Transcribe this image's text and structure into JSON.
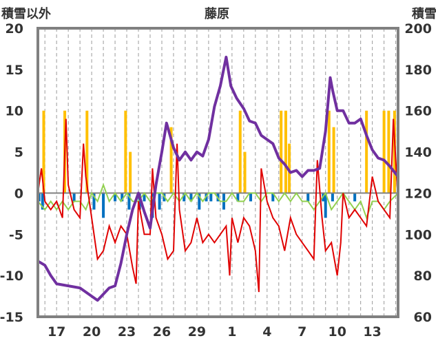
{
  "chart_data": {
    "type": "line",
    "title": "藤原",
    "left_axis_title": "積雪以外",
    "right_axis_title": "積雪",
    "left_ylim": [
      -15,
      20
    ],
    "left_yticks": [
      -15,
      -10,
      -5,
      0,
      5,
      10,
      15,
      20
    ],
    "right_ylim": [
      60,
      200
    ],
    "right_yticks": [
      60,
      80,
      100,
      120,
      140,
      160,
      180,
      200
    ],
    "x_ticks": [
      "17",
      "20",
      "23",
      "26",
      "29",
      "1",
      "4",
      "7",
      "10",
      "13"
    ],
    "x_tick_day_index": [
      2,
      5,
      8,
      11,
      14,
      17,
      20,
      23,
      26,
      29
    ],
    "x_range_days": [
      0.4,
      31.2
    ],
    "grid_x_dashed": true,
    "colors": {
      "snow_depth": "#7030a0",
      "temperature": "#e00000",
      "sunshine": "#ffc000",
      "precipitation": "#0070c0",
      "temp_change": "#92d050",
      "frame": "#808080"
    },
    "snow_depth": {
      "axis": "right",
      "points": [
        [
          0.4,
          87
        ],
        [
          1.0,
          85
        ],
        [
          1.5,
          80
        ],
        [
          2.0,
          76
        ],
        [
          3.0,
          75
        ],
        [
          4.0,
          74
        ],
        [
          4.5,
          72
        ],
        [
          5.0,
          70
        ],
        [
          5.5,
          68
        ],
        [
          6.0,
          71
        ],
        [
          6.5,
          74
        ],
        [
          7.0,
          75
        ],
        [
          7.5,
          86
        ],
        [
          8.0,
          100
        ],
        [
          8.5,
          112
        ],
        [
          9.0,
          120
        ],
        [
          9.5,
          111
        ],
        [
          10.0,
          103
        ],
        [
          10.5,
          124
        ],
        [
          11.0,
          140
        ],
        [
          11.4,
          154
        ],
        [
          12.0,
          142
        ],
        [
          12.5,
          136
        ],
        [
          13.0,
          140
        ],
        [
          13.5,
          136
        ],
        [
          14.0,
          140
        ],
        [
          14.5,
          138
        ],
        [
          15.0,
          146
        ],
        [
          15.5,
          162
        ],
        [
          16.0,
          172
        ],
        [
          16.5,
          186
        ],
        [
          16.9,
          172
        ],
        [
          17.4,
          166
        ],
        [
          18.0,
          161
        ],
        [
          18.5,
          155
        ],
        [
          19.0,
          154
        ],
        [
          19.5,
          148
        ],
        [
          20.0,
          146
        ],
        [
          20.5,
          144
        ],
        [
          21.0,
          137
        ],
        [
          21.5,
          134
        ],
        [
          22.0,
          130
        ],
        [
          22.5,
          131
        ],
        [
          23.0,
          128
        ],
        [
          23.5,
          131
        ],
        [
          24.0,
          131
        ],
        [
          24.5,
          132
        ],
        [
          25.0,
          150
        ],
        [
          25.4,
          176
        ],
        [
          25.6,
          170
        ],
        [
          26.0,
          160
        ],
        [
          26.5,
          160
        ],
        [
          27.0,
          154
        ],
        [
          27.5,
          154
        ],
        [
          28.0,
          156
        ],
        [
          28.5,
          148
        ],
        [
          29.0,
          141
        ],
        [
          29.5,
          137
        ],
        [
          30.0,
          136
        ],
        [
          30.5,
          133
        ],
        [
          31.2,
          128
        ]
      ]
    },
    "temperature": {
      "axis": "left",
      "points": [
        [
          0.4,
          0
        ],
        [
          0.7,
          3
        ],
        [
          1.0,
          -1
        ],
        [
          1.5,
          -2
        ],
        [
          2.0,
          -1
        ],
        [
          2.5,
          -3
        ],
        [
          2.8,
          9
        ],
        [
          3.0,
          1
        ],
        [
          3.5,
          -2
        ],
        [
          4.0,
          -3
        ],
        [
          4.3,
          6
        ],
        [
          4.5,
          2
        ],
        [
          5.0,
          -3
        ],
        [
          5.5,
          -8
        ],
        [
          6.0,
          -7
        ],
        [
          6.5,
          -4
        ],
        [
          7.0,
          -6
        ],
        [
          7.5,
          -4
        ],
        [
          8.0,
          -5
        ],
        [
          8.5,
          -9
        ],
        [
          8.8,
          -11
        ],
        [
          9.0,
          -1
        ],
        [
          9.5,
          -5
        ],
        [
          10.0,
          -5
        ],
        [
          10.2,
          3
        ],
        [
          10.5,
          -3
        ],
        [
          11.0,
          -5
        ],
        [
          11.5,
          -8
        ],
        [
          12.0,
          -7
        ],
        [
          12.3,
          6
        ],
        [
          12.5,
          -2
        ],
        [
          13.0,
          -7
        ],
        [
          13.5,
          -6
        ],
        [
          14.0,
          -3
        ],
        [
          14.5,
          -6
        ],
        [
          15.0,
          -5
        ],
        [
          15.5,
          -6
        ],
        [
          16.0,
          -5
        ],
        [
          16.5,
          -4
        ],
        [
          16.8,
          -10
        ],
        [
          17.0,
          -3
        ],
        [
          17.5,
          -6
        ],
        [
          18.0,
          -3
        ],
        [
          18.5,
          -4
        ],
        [
          19.0,
          -7
        ],
        [
          19.3,
          -12
        ],
        [
          19.5,
          3
        ],
        [
          20.0,
          -1
        ],
        [
          20.5,
          -3
        ],
        [
          21.0,
          -4
        ],
        [
          21.5,
          -7
        ],
        [
          22.0,
          -3
        ],
        [
          22.5,
          -5
        ],
        [
          23.0,
          -6
        ],
        [
          23.5,
          -7
        ],
        [
          24.0,
          -8
        ],
        [
          24.3,
          4
        ],
        [
          24.7,
          -3
        ],
        [
          25.0,
          -7
        ],
        [
          25.5,
          -6
        ],
        [
          26.0,
          -10
        ],
        [
          26.3,
          -6
        ],
        [
          26.5,
          0
        ],
        [
          27.0,
          -3
        ],
        [
          27.5,
          -2
        ],
        [
          28.0,
          -3
        ],
        [
          28.5,
          -4
        ],
        [
          29.0,
          2
        ],
        [
          29.5,
          -1
        ],
        [
          30.0,
          -2
        ],
        [
          30.5,
          -3
        ],
        [
          30.8,
          9
        ],
        [
          31.2,
          -1
        ]
      ]
    },
    "temp_change": {
      "axis": "left",
      "points": [
        [
          0.4,
          -1
        ],
        [
          1.0,
          -2
        ],
        [
          1.5,
          -1
        ],
        [
          2.0,
          -2
        ],
        [
          2.5,
          -1
        ],
        [
          3.0,
          -2
        ],
        [
          3.5,
          -1
        ],
        [
          4.0,
          -1
        ],
        [
          4.5,
          -2
        ],
        [
          5.0,
          0
        ],
        [
          5.5,
          -1
        ],
        [
          6.0,
          1
        ],
        [
          6.5,
          -1
        ],
        [
          7.0,
          0
        ],
        [
          7.5,
          -1
        ],
        [
          8.0,
          0
        ],
        [
          8.5,
          -1
        ],
        [
          9.0,
          -1
        ],
        [
          9.5,
          0
        ],
        [
          10.0,
          -1
        ],
        [
          10.5,
          0
        ],
        [
          11.0,
          0
        ],
        [
          11.5,
          -1
        ],
        [
          12.0,
          0
        ],
        [
          12.5,
          -1
        ],
        [
          13.0,
          0
        ],
        [
          13.5,
          -1
        ],
        [
          14.0,
          0
        ],
        [
          14.5,
          -1
        ],
        [
          15.0,
          0
        ],
        [
          15.5,
          0
        ],
        [
          16.0,
          -1
        ],
        [
          16.5,
          -1
        ],
        [
          17.0,
          0
        ],
        [
          17.5,
          -1
        ],
        [
          18.0,
          -1
        ],
        [
          18.5,
          0
        ],
        [
          19.0,
          0
        ],
        [
          19.5,
          -1
        ],
        [
          20.0,
          0
        ],
        [
          20.5,
          0
        ],
        [
          21.0,
          -1
        ],
        [
          21.5,
          0
        ],
        [
          22.0,
          -1
        ],
        [
          22.5,
          0
        ],
        [
          23.0,
          -1
        ],
        [
          23.5,
          -1
        ],
        [
          24.0,
          -2
        ],
        [
          24.5,
          -1
        ],
        [
          25.0,
          0
        ],
        [
          25.5,
          -2
        ],
        [
          26.0,
          -1
        ],
        [
          26.5,
          0
        ],
        [
          27.0,
          -1
        ],
        [
          27.5,
          -2
        ],
        [
          28.0,
          -1
        ],
        [
          28.5,
          -3
        ],
        [
          29.0,
          -1
        ],
        [
          29.5,
          -1
        ],
        [
          30.0,
          -2
        ],
        [
          30.5,
          -1
        ],
        [
          31.2,
          0
        ]
      ]
    },
    "sunshine": {
      "axis": "left",
      "bars": [
        [
          0.9,
          10
        ],
        [
          2.7,
          10
        ],
        [
          4.6,
          10
        ],
        [
          7.9,
          10
        ],
        [
          8.3,
          5
        ],
        [
          11.8,
          8
        ],
        [
          17.7,
          10
        ],
        [
          18.1,
          5
        ],
        [
          21.2,
          10
        ],
        [
          21.6,
          10
        ],
        [
          21.9,
          6
        ],
        [
          25.3,
          10
        ],
        [
          25.7,
          8
        ],
        [
          28.5,
          10
        ],
        [
          30.0,
          10
        ],
        [
          30.4,
          10
        ],
        [
          30.9,
          10
        ]
      ]
    },
    "precipitation": {
      "axis": "left",
      "bars": [
        [
          0.5,
          -1
        ],
        [
          0.8,
          -2
        ],
        [
          3.5,
          -1
        ],
        [
          5.2,
          -2
        ],
        [
          6.0,
          -3
        ],
        [
          7.0,
          -1
        ],
        [
          7.6,
          -1
        ],
        [
          8.2,
          -2
        ],
        [
          9.1,
          -2
        ],
        [
          9.5,
          -1
        ],
        [
          10.2,
          -3
        ],
        [
          10.8,
          -2
        ],
        [
          11.2,
          -1
        ],
        [
          12.9,
          -1
        ],
        [
          13.5,
          -1
        ],
        [
          14.2,
          -2
        ],
        [
          14.8,
          -1
        ],
        [
          15.2,
          -1
        ],
        [
          15.8,
          -1
        ],
        [
          16.3,
          -2
        ],
        [
          17.5,
          -1
        ],
        [
          18.6,
          -1
        ],
        [
          20.5,
          -1
        ],
        [
          23.5,
          -1
        ],
        [
          24.8,
          -1
        ],
        [
          25.0,
          -3
        ],
        [
          25.6,
          -1
        ],
        [
          27.5,
          -1
        ]
      ]
    }
  }
}
